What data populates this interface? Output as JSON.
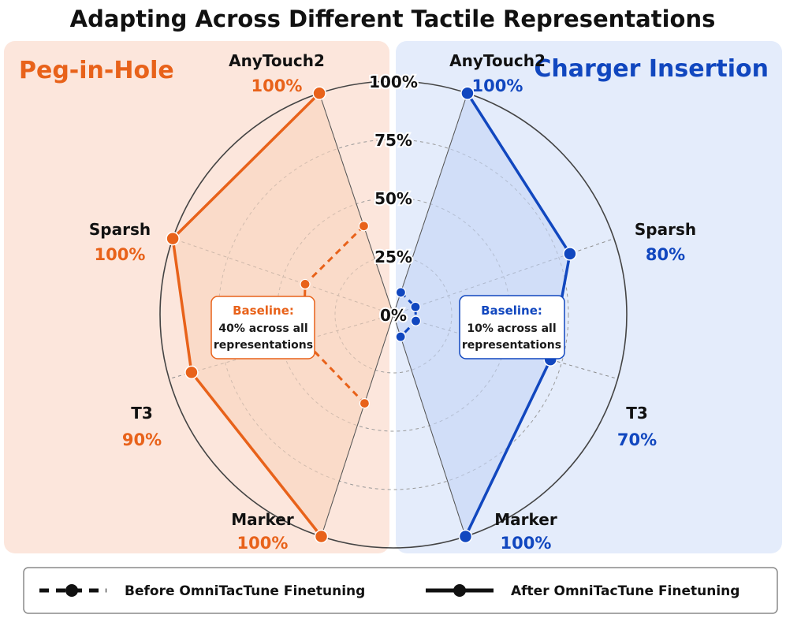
{
  "chart_data": {
    "type": "radar",
    "title": "Adapting Across Different Tactile Representations",
    "axes": [
      "AnyTouch2",
      "Sparsh",
      "T3",
      "Marker"
    ],
    "rlim": [
      0,
      100
    ],
    "ticks": [
      "0%",
      "25%",
      "50%",
      "75%",
      "100%"
    ],
    "tick_values": [
      0,
      25,
      50,
      75,
      100
    ],
    "grid": true,
    "panels": [
      {
        "name": "Peg-in-Hole",
        "side": "left",
        "color": "#e8621a",
        "fill": "#f9d3bd",
        "background": "#fce6dc",
        "after_values": [
          100,
          100,
          90,
          100
        ],
        "before_values": [
          40,
          40,
          40,
          40
        ],
        "value_labels": [
          "100%",
          "100%",
          "90%",
          "100%"
        ],
        "baseline_title": "Baseline:",
        "baseline_lines": [
          "40% across all",
          "representations"
        ]
      },
      {
        "name": "Charger Insertion",
        "side": "right",
        "color": "#1147bf",
        "fill": "#c4d6f6",
        "background": "#e4ecfb",
        "after_values": [
          100,
          80,
          70,
          100
        ],
        "before_values": [
          10,
          10,
          10,
          10
        ],
        "value_labels": [
          "100%",
          "80%",
          "70%",
          "100%"
        ],
        "baseline_title": "Baseline:",
        "baseline_lines": [
          "10% across all",
          "representations"
        ]
      }
    ],
    "legend": {
      "position": "bottom",
      "before_label": "Before OmniTacTune Finetuning",
      "after_label": "After OmniTacTune Finetuning"
    }
  }
}
